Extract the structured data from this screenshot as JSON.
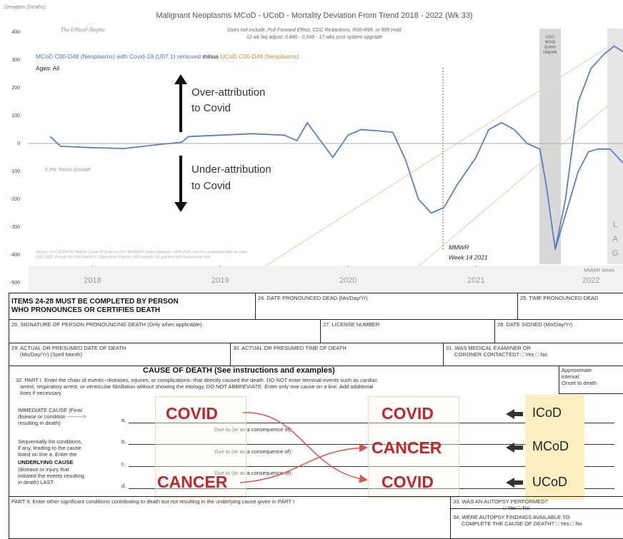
{
  "chart_data": {
    "type": "line",
    "y_label": "Deviation (Deaths)",
    "title": "Malignant Neoplasms MCoD - UCoD - Mortality Deviation From Trend  2018 - 2022 (Wk 33)",
    "author": "The Ethical Skeptic",
    "subtitle": [
      "Does not include: Pull Forward Effect, CDC Redactions, R00-R99, or 999 Hold",
      "12 wk lag adjust: 0.846 - 0.998 - 17 wks post system upgrade"
    ],
    "legend_text": [
      "MCoD C00-D48 (Neoplasms) with Covid-19 (U07.1) removed",
      "minus",
      "UCoD C00-D48 (Neoplasms)"
    ],
    "legend_colors": [
      "#4a72c0",
      "#111111",
      "#d08a3a"
    ],
    "ages": "Ages: All",
    "annotations": {
      "over": [
        "Over-attribution",
        "to Covid"
      ],
      "under": [
        "Under-attribution",
        "to Covid"
      ],
      "trend": "3.3% Trend Growth",
      "mmwr": [
        "MMWR",
        "Week 14 2021"
      ],
      "upgrade": [
        "CDC/",
        "NCHS",
        "System",
        "Upgrade"
      ],
      "lag": [
        "L",
        "A",
        "G"
      ],
      "mmwr_week": "MMWR Week",
      "source": [
        "Source: US CDC/NCHS Multiple Cause of Death on CDC WONDER Online Database, 2018-2020, and from provisional data for years",
        "2021-2022, through the Vital Statistics Cooperative Program; http://wonder.cdc.gov/mcd-icd10-provisional.html"
      ]
    },
    "xlim": [
      2018,
      2022.65
    ],
    "xticks": [
      {
        "value": 2018.5,
        "label": "2018"
      },
      {
        "value": 2019.5,
        "label": "2019"
      },
      {
        "value": 2020.5,
        "label": "2020"
      },
      {
        "value": 2021.5,
        "label": "2021"
      },
      {
        "value": 2022.4,
        "label": "2022"
      }
    ],
    "ylim": [
      -500,
      400
    ],
    "yticks": [
      -500,
      -400,
      -300,
      -200,
      -100,
      0,
      100,
      200,
      300,
      400
    ],
    "zero_line": true,
    "series": [
      {
        "color": "#5b7fc2",
        "x": [
          2018.17,
          2018.25,
          2018.5,
          2018.75,
          2019.0,
          2019.2,
          2019.25,
          2019.5,
          2019.75,
          2020.0,
          2020.1,
          2020.18,
          2020.3,
          2020.38,
          2020.5,
          2020.6,
          2020.75,
          2020.85,
          2020.95,
          2021.05,
          2021.15,
          2021.25,
          2021.35,
          2021.5,
          2021.6,
          2021.7,
          2021.8,
          2021.9,
          2022.0,
          2022.05,
          2022.12,
          2022.2,
          2022.3,
          2022.4,
          2022.5,
          2022.58,
          2022.65
        ],
        "values": [
          25,
          -10,
          -15,
          -18,
          -5,
          5,
          25,
          30,
          35,
          30,
          10,
          75,
          0,
          -50,
          30,
          50,
          45,
          40,
          -60,
          -200,
          -250,
          -230,
          -150,
          -50,
          50,
          75,
          50,
          0,
          -20,
          -150,
          -380,
          -200,
          150,
          270,
          320,
          350,
          330
        ]
      },
      {
        "color": "#5b7fc2",
        "x": [
          2022.12,
          2022.3,
          2022.38,
          2022.45,
          2022.55,
          2022.65
        ],
        "values": [
          -380,
          -100,
          -30,
          -20,
          -20,
          -70
        ]
      }
    ]
  },
  "form": {
    "header": [
      "ITEMS 24-28 MUST BE COMPLETED BY PERSON",
      "WHO PRONOUNCES OR CERTIFIES DEATH"
    ],
    "f24": "24.  DATE PRONOUNCED DEAD (Mo/Day/Yr)",
    "f25": "25.  TIME PRONOUNCED DEAD",
    "f26": "26.  SIGNATURE OF PERSON PRONOUNCING DEATH (Only when applicable)",
    "f27": "27.  LICENSE NUMBER",
    "f28": "28.  DATE SIGNED (Mo/Day/Yr)",
    "f29": [
      "29.  ACTUAL OR PRESUMED DATE OF DEATH",
      "(Mo/Day/Yr)  (Spell Month)"
    ],
    "f30": "30.  ACTUAL OR PRESUMED TIME OF DEATH",
    "f31": [
      "31.  WAS MEDICAL EXAMINER OR",
      "CORONER CONTACTED?  □ Yes  □ No"
    ],
    "cause_title": "CAUSE OF DEATH (See instructions and examples)",
    "part1": [
      "32.  PART I.  Enter the chain of events--diseases, injuries, or complications--that directly caused the death.  DO NOT enter terminal events such as cardiac",
      "arrest, respiratory arrest, or ventricular fibrillation without showing the etiology.  DO NOT ABBREVIATE.  Enter only one cause on a line.  Add additional",
      "lines if necessary."
    ],
    "interval": [
      "Approximate",
      "interval:",
      "Onset to death"
    ],
    "immediate": [
      "IMMEDIATE CAUSE (Final",
      "disease  or condition  --------->",
      "resulting  in death)"
    ],
    "letters": [
      "a.",
      "b.",
      "c.",
      "d."
    ],
    "due_to": [
      "Due to (or as a consequence of):",
      "Due to (or as a consequence of):",
      "Due to (or as a consequence of):"
    ],
    "sequential": [
      "Sequentially list conditions,",
      "if any, leading to the cause",
      "listed on line a.  Enter the",
      "UNDERLYING CAUSE",
      "(disease or injury that",
      "initiated the events resulting",
      "in death) LAST"
    ],
    "part2": "PART II.  Enter other significant conditions contributing to death but not resulting in the underlying cause given in PART I",
    "f33": "33.  WAS AN AUTOPSY PERFORMED?",
    "f33_opts": "□ Yes   □ No",
    "f34": [
      "34.  WERE AUTOPSY FINDINGS AVAILABLE TO",
      "COMPLETE THE CAUSE OF DEATH?  □ Yes  □ No"
    ],
    "left_causes": [
      "COVID",
      "CANCER"
    ],
    "right_causes": [
      "COVID",
      "CANCER",
      "COVID"
    ],
    "roles": [
      "ICoD",
      "MCoD",
      "UCoD"
    ]
  }
}
